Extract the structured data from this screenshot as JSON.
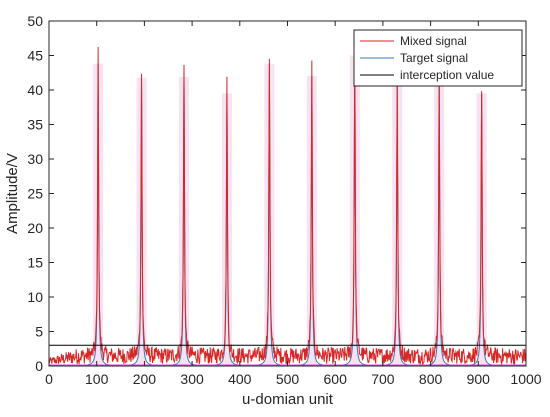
{
  "chart_data": {
    "type": "line",
    "xlabel": "u-domian unit",
    "ylabel": "Amplitude/V",
    "xlim": [
      0,
      1000
    ],
    "ylim": [
      0,
      50
    ],
    "xticks": [
      0,
      100,
      200,
      300,
      400,
      500,
      600,
      700,
      800,
      900,
      1000
    ],
    "yticks": [
      0,
      5,
      10,
      15,
      20,
      25,
      30,
      35,
      40,
      45,
      50
    ],
    "grid": false,
    "legend_position": "top-right",
    "series": [
      {
        "name": "Mixed signal",
        "color": "#d62728",
        "peaks": [
          {
            "x": 103,
            "y": 43.8
          },
          {
            "x": 194,
            "y": 41.8
          },
          {
            "x": 283,
            "y": 41.9
          },
          {
            "x": 373,
            "y": 39.5
          },
          {
            "x": 462,
            "y": 43.8
          },
          {
            "x": 551,
            "y": 42.0
          },
          {
            "x": 641,
            "y": 45.0
          },
          {
            "x": 730,
            "y": 41.0
          },
          {
            "x": 818,
            "y": 41.5
          },
          {
            "x": 907,
            "y": 39.5
          }
        ],
        "baseline_range": [
          0.2,
          2.6
        ]
      },
      {
        "name": "Target signal",
        "color": "#3a78b5",
        "peaks": [
          {
            "x": 103,
            "y": 43.8
          },
          {
            "x": 194,
            "y": 41.8
          },
          {
            "x": 283,
            "y": 41.9
          },
          {
            "x": 373,
            "y": 39.5
          },
          {
            "x": 462,
            "y": 43.8
          },
          {
            "x": 551,
            "y": 42.0
          },
          {
            "x": 641,
            "y": 45.0
          },
          {
            "x": 730,
            "y": 41.0
          },
          {
            "x": 818,
            "y": 41.5
          },
          {
            "x": 907,
            "y": 39.5
          }
        ]
      },
      {
        "name": "interception value",
        "color": "#000000",
        "value": 3
      }
    ]
  }
}
